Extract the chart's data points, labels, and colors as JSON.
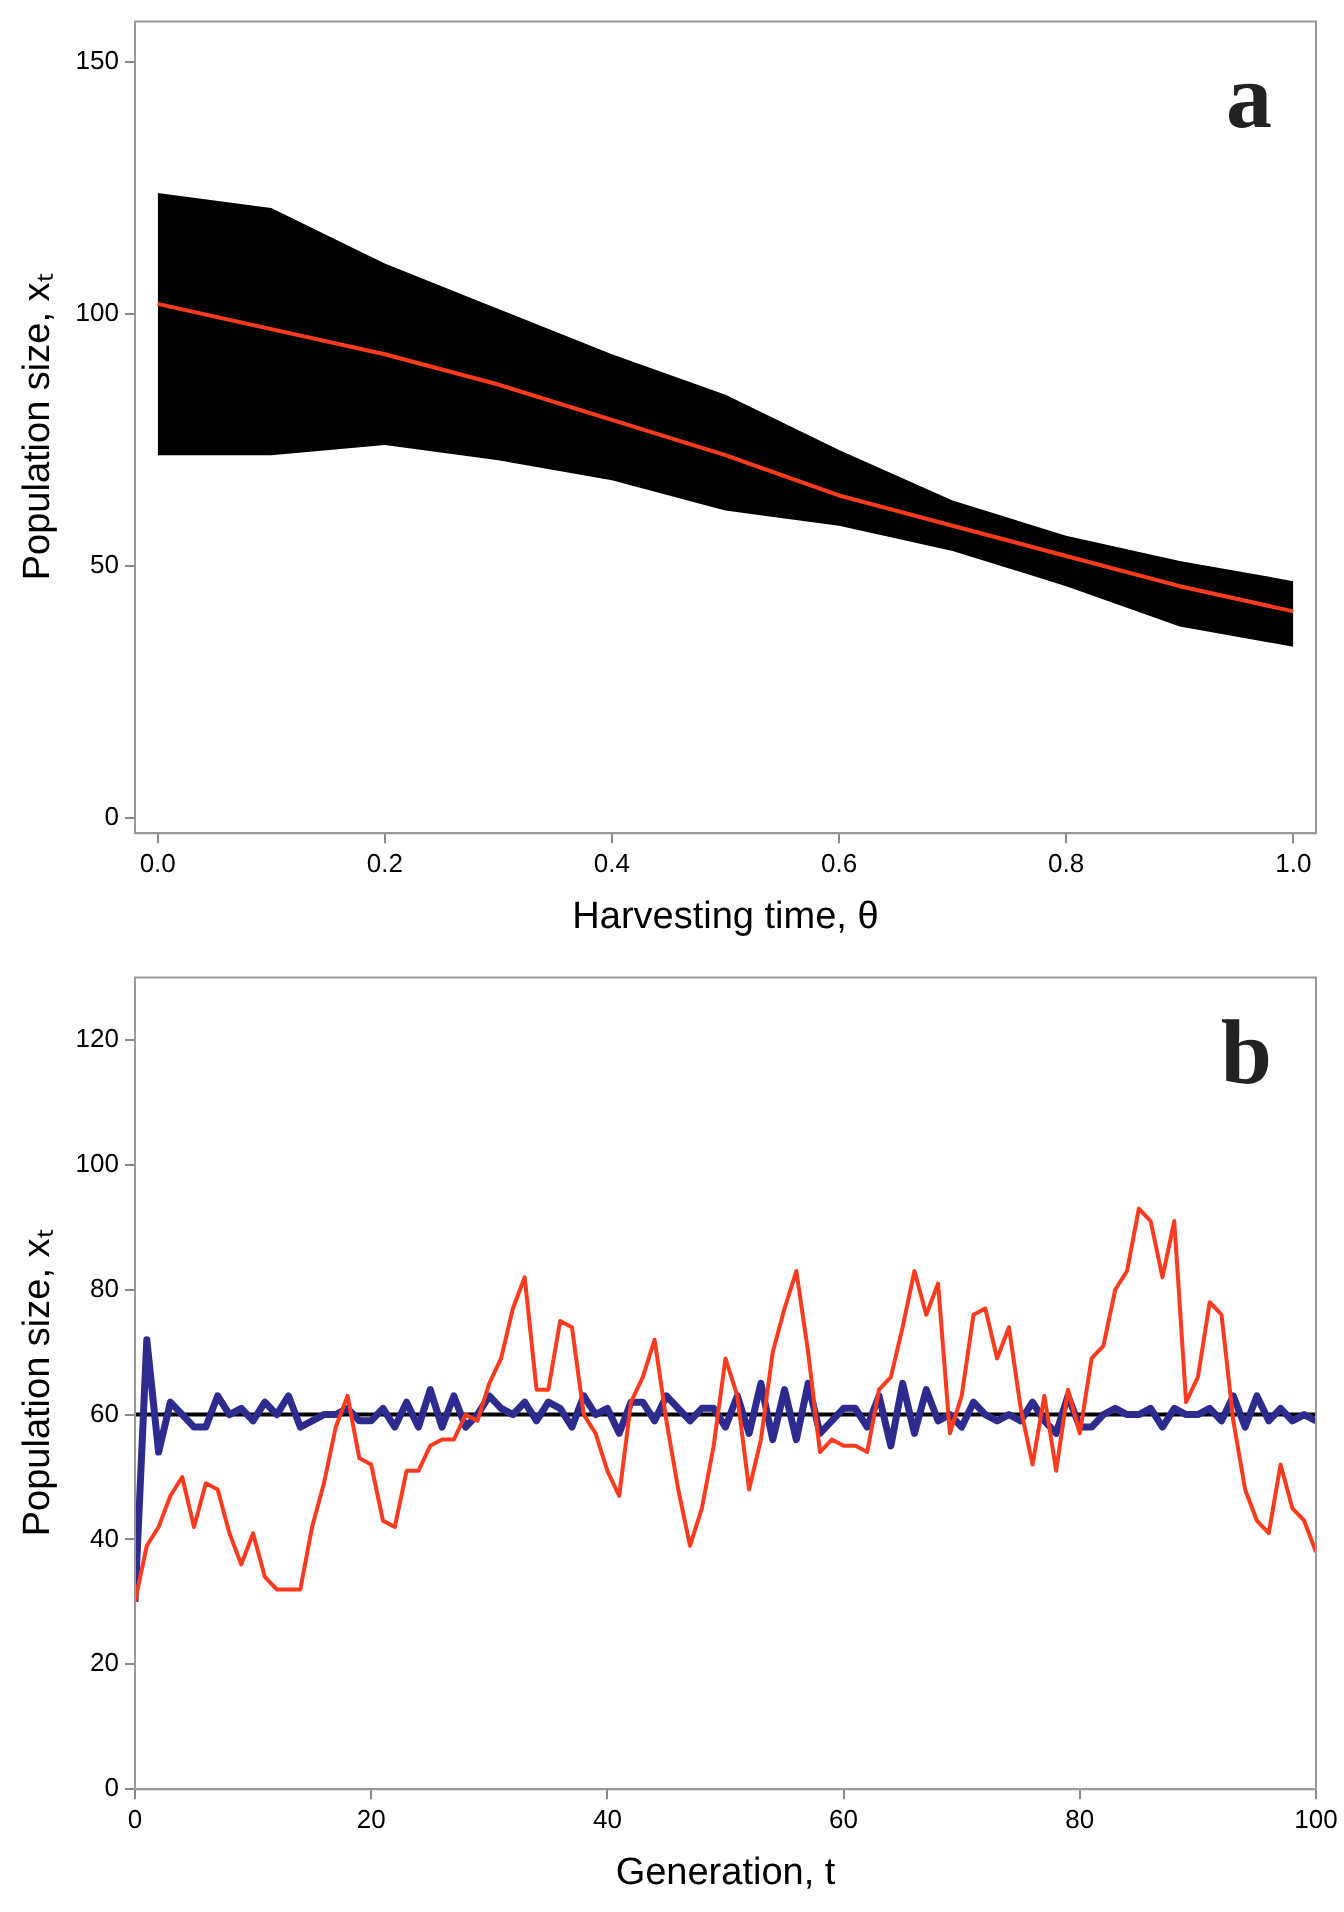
{
  "chart_data": [
    {
      "type": "line",
      "xlabel": "Harvesting time, θ",
      "ylabel": "Population size, xₜ",
      "annotations": [
        "a"
      ],
      "xlim": [
        -0.02,
        1.02
      ],
      "ylim": [
        -3,
        158
      ],
      "xticks": [
        {
          "value": 0,
          "label": "0.0"
        },
        {
          "value": 0.2,
          "label": "0.2"
        },
        {
          "value": 0.4,
          "label": "0.4"
        },
        {
          "value": 0.6,
          "label": "0.6"
        },
        {
          "value": 0.8,
          "label": "0.8"
        },
        {
          "value": 1,
          "label": "1.0"
        }
      ],
      "yticks": [
        0,
        50,
        100,
        150
      ],
      "grid": false,
      "legend": false,
      "marker": "none",
      "line_style": "solid",
      "series": [
        {
          "color": "#ff3b1f",
          "x": [
            0,
            0.1,
            0.2,
            0.3,
            0.4,
            0.5,
            0.6,
            0.7,
            0.8,
            0.9,
            1
          ],
          "values": [
            102,
            97,
            92,
            86,
            79,
            72,
            64,
            58,
            52,
            46,
            41
          ],
          "lower": [
            72,
            72,
            74,
            71,
            67,
            61,
            58,
            53,
            46,
            38,
            34
          ],
          "upper": [
            124,
            121,
            110,
            101,
            92,
            84,
            73,
            63,
            56,
            51,
            47
          ]
        }
      ]
    },
    {
      "type": "line",
      "xlabel": "Generation, t",
      "ylabel": "Population size, xₜ",
      "annotations": [
        "b"
      ],
      "xlim": [
        0,
        100
      ],
      "ylim": [
        0,
        130
      ],
      "xticks": [
        0,
        20,
        40,
        60,
        80,
        100
      ],
      "yticks": [
        0,
        20,
        40,
        60,
        80,
        100,
        120
      ],
      "grid": false,
      "legend": false,
      "marker": "none",
      "line_style": "solid",
      "ref_lines": [
        {
          "axis": "y",
          "value": 60,
          "color": "#000000"
        }
      ],
      "x": [
        0,
        1,
        2,
        3,
        4,
        5,
        6,
        7,
        8,
        9,
        10,
        11,
        12,
        13,
        14,
        15,
        16,
        17,
        18,
        19,
        20,
        21,
        22,
        23,
        24,
        25,
        26,
        27,
        28,
        29,
        30,
        31,
        32,
        33,
        34,
        35,
        36,
        37,
        38,
        39,
        40,
        41,
        42,
        43,
        44,
        45,
        46,
        47,
        48,
        49,
        50,
        51,
        52,
        53,
        54,
        55,
        56,
        57,
        58,
        59,
        60,
        61,
        62,
        63,
        64,
        65,
        66,
        67,
        68,
        69,
        70,
        71,
        72,
        73,
        74,
        75,
        76,
        77,
        78,
        79,
        80,
        81,
        82,
        83,
        84,
        85,
        86,
        87,
        88,
        89,
        90,
        91,
        92,
        93,
        94,
        95,
        96,
        97,
        98,
        99,
        100
      ],
      "series": [
        {
          "color": "#ff3b1f",
          "values": [
            30,
            39,
            42,
            47,
            50,
            42,
            49,
            48,
            41,
            36,
            41,
            34,
            32,
            32,
            32,
            42,
            49,
            58,
            63,
            53,
            52,
            43,
            42,
            51,
            51,
            55,
            56,
            56,
            60,
            59,
            65,
            69,
            77,
            82,
            64,
            64,
            75,
            74,
            60,
            57,
            51,
            47,
            62,
            66,
            72,
            59,
            48,
            39,
            45,
            55,
            69,
            63,
            48,
            56,
            70,
            77,
            83,
            70,
            54,
            56,
            55,
            55,
            54,
            64,
            66,
            74,
            83,
            76,
            81,
            57,
            63,
            76,
            77,
            69,
            74,
            61,
            52,
            63,
            51,
            64,
            57,
            69,
            71,
            80,
            83,
            93,
            91,
            82,
            91,
            62,
            66,
            78,
            76,
            59,
            48,
            43,
            41,
            52,
            45,
            43,
            38
          ]
        },
        {
          "color": "#2e2b8f",
          "values": [
            30,
            72,
            54,
            62,
            60,
            58,
            58,
            63,
            60,
            61,
            59,
            62,
            60,
            63,
            58,
            59,
            60,
            60,
            61,
            59,
            59,
            61,
            58,
            62,
            58,
            64,
            58,
            63,
            58,
            60,
            63,
            61,
            60,
            62,
            59,
            62,
            61,
            58,
            63,
            60,
            61,
            57,
            62,
            62,
            59,
            63,
            61,
            59,
            61,
            61,
            58,
            63,
            57,
            65,
            56,
            64,
            56,
            65,
            57,
            59,
            61,
            61,
            58,
            63,
            55,
            65,
            57,
            64,
            59,
            60,
            58,
            62,
            60,
            59,
            60,
            59,
            62,
            59,
            57,
            63,
            58,
            58,
            60,
            61,
            60,
            60,
            61,
            58,
            61,
            60,
            60,
            61,
            59,
            63,
            58,
            63,
            59,
            61,
            59,
            60,
            59
          ]
        }
      ]
    }
  ]
}
